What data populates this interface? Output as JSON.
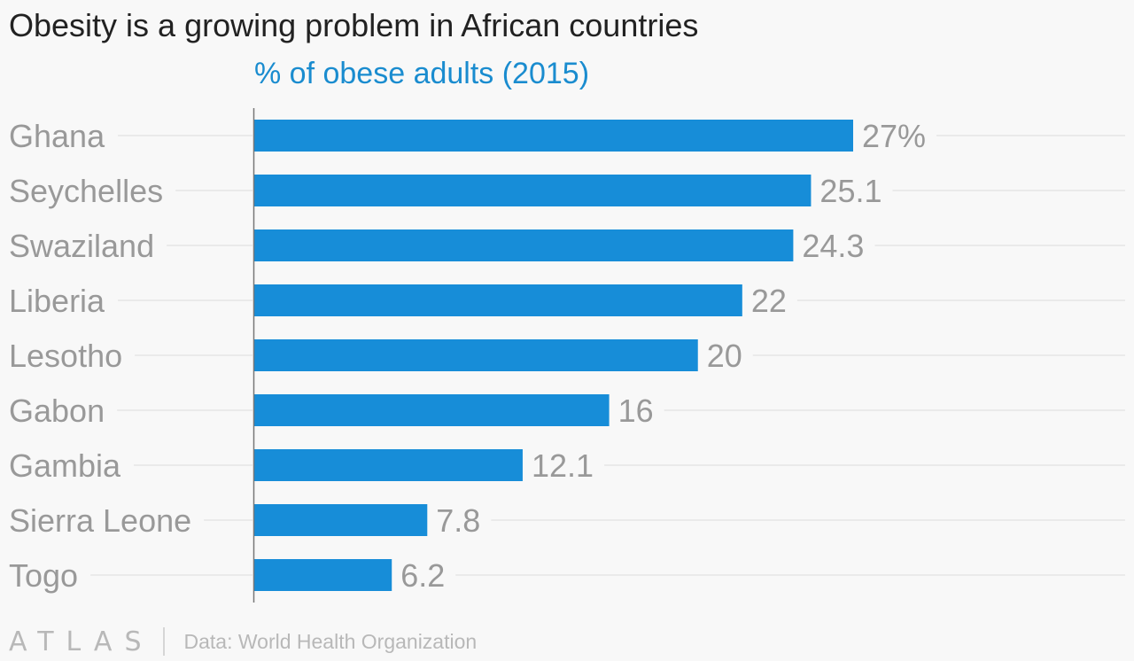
{
  "title": "Obesity is a growing problem in African countries",
  "subtitle": "% of obese adults (2015)",
  "footer": {
    "logo": "ATLAS",
    "source": "Data: World Health Organization"
  },
  "colors": {
    "bar": "#178dd8",
    "subtitle": "#1a8ccf",
    "category_label": "#999999",
    "value_label": "#999999",
    "gridline": "#e6e6e6",
    "axis": "#777777"
  },
  "chart_data": {
    "type": "bar",
    "orientation": "horizontal",
    "title": "Obesity is a growing problem in African countries",
    "subtitle": "% of obese adults (2015)",
    "categories": [
      "Ghana",
      "Seychelles",
      "Swaziland",
      "Liberia",
      "Lesotho",
      "Gabon",
      "Gambia",
      "Sierra Leone",
      "Togo"
    ],
    "values": [
      27,
      25.1,
      24.3,
      22,
      20,
      16,
      12.1,
      7.8,
      6.2
    ],
    "value_labels": [
      "27%",
      "25.1",
      "24.3",
      "22",
      "20",
      "16",
      "12.1",
      "7.8",
      "6.2"
    ],
    "xlim": [
      0,
      27
    ],
    "grid": true
  }
}
